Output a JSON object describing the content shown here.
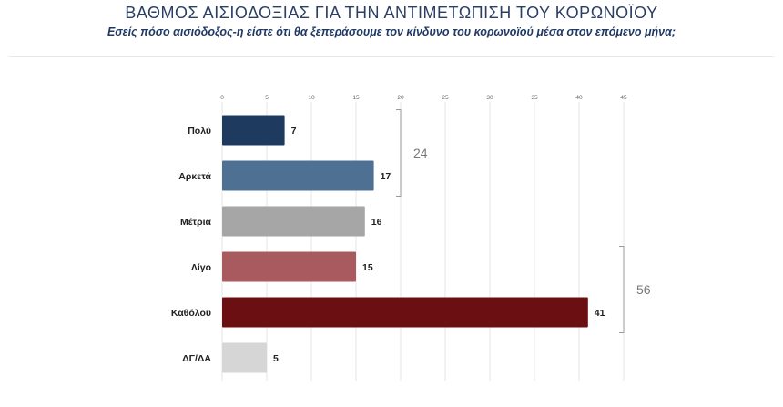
{
  "header": {
    "title": "ΒΑΘΜΟΣ ΑΙΣΙΟΔΟΞΙΑΣ ΓΙΑ ΤΗΝ ΑΝΤΙΜΕΤΩΠΙΣΗ ΤΟΥ ΚΟΡΩΝΟΪΟΥ",
    "subtitle": "Εσείς πόσο αισιόδοξος-η είστε ότι θα ξεπεράσουμε τον κίνδυνο του κορωνοϊού μέσα στον επόμενο μήνα;"
  },
  "chart_data": {
    "type": "bar",
    "orientation": "horizontal",
    "categories": [
      "Πολύ",
      "Αρκετά",
      "Μέτρια",
      "Λίγο",
      "Καθόλου",
      "ΔΓ/ΔΑ"
    ],
    "values": [
      7,
      17,
      16,
      15,
      41,
      5
    ],
    "colors": [
      "#1f3a5f",
      "#4e7093",
      "#a6a6a6",
      "#a85a5e",
      "#6b0f12",
      "#d6d6d6"
    ],
    "xlim": [
      0,
      45
    ],
    "ticks": [
      "0",
      "5",
      "10",
      "15",
      "20",
      "25",
      "30",
      "35",
      "40",
      "45"
    ],
    "grid": true,
    "groups": [
      {
        "label": "24",
        "from": 0,
        "to": 1,
        "side": "left-of-axis-20"
      },
      {
        "label": "56",
        "from": 3,
        "to": 4,
        "side": "right"
      }
    ]
  }
}
